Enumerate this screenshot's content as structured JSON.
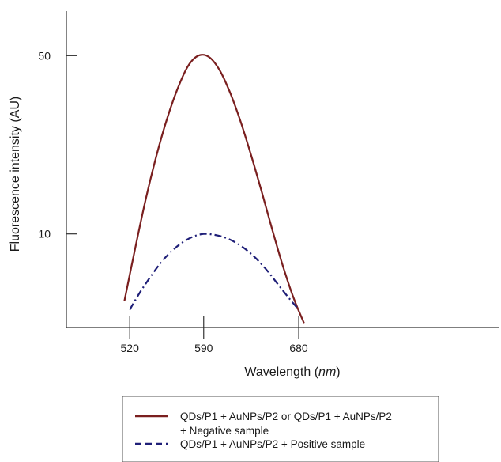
{
  "chart_data": {
    "type": "line",
    "xlabel_main": "Wavelength (",
    "xlabel_unit": "nm",
    "xlabel_close": ")",
    "ylabel": "Fluorescence intensity (AU)",
    "x_ticks": [
      520,
      590,
      680
    ],
    "y_ticks": [
      10,
      50
    ],
    "xlim": [
      460,
      870
    ],
    "ylim": [
      -11,
      60
    ],
    "grid": false,
    "legend_position": "bottom",
    "series": [
      {
        "legend_lines": [
          "QDs/P1 + AuNPs/P2 or QDs/P1 + AuNPs/P2",
          "+ Negative sample"
        ],
        "color": "#7a1f1f",
        "style": "solid",
        "x": [
          515,
          525,
          535,
          545,
          555,
          565,
          575,
          585,
          595,
          605,
          615,
          625,
          635,
          645,
          655,
          665,
          675,
          685
        ],
        "y": [
          -5,
          6.6,
          17.6,
          27.3,
          35.6,
          42.4,
          47.6,
          50,
          49.7,
          46.8,
          41.7,
          35.2,
          27.6,
          19.4,
          10.9,
          2.8,
          -4.3,
          -10
        ]
      },
      {
        "legend_lines": [
          "QDs/P1 + AuNPs/P2 + Positive sample"
        ],
        "color": "#1f1f78",
        "style": "dashdot",
        "x": [
          520,
          530,
          540,
          550,
          560,
          570,
          580,
          590,
          600,
          610,
          620,
          630,
          640,
          650,
          660,
          670,
          680
        ],
        "y": [
          -7,
          -3,
          0.5,
          3.7,
          6.2,
          8.1,
          9.4,
          10,
          9.8,
          9.2,
          8.1,
          6.5,
          4.4,
          1.8,
          -1.2,
          -4.2,
          -7
        ]
      }
    ]
  }
}
